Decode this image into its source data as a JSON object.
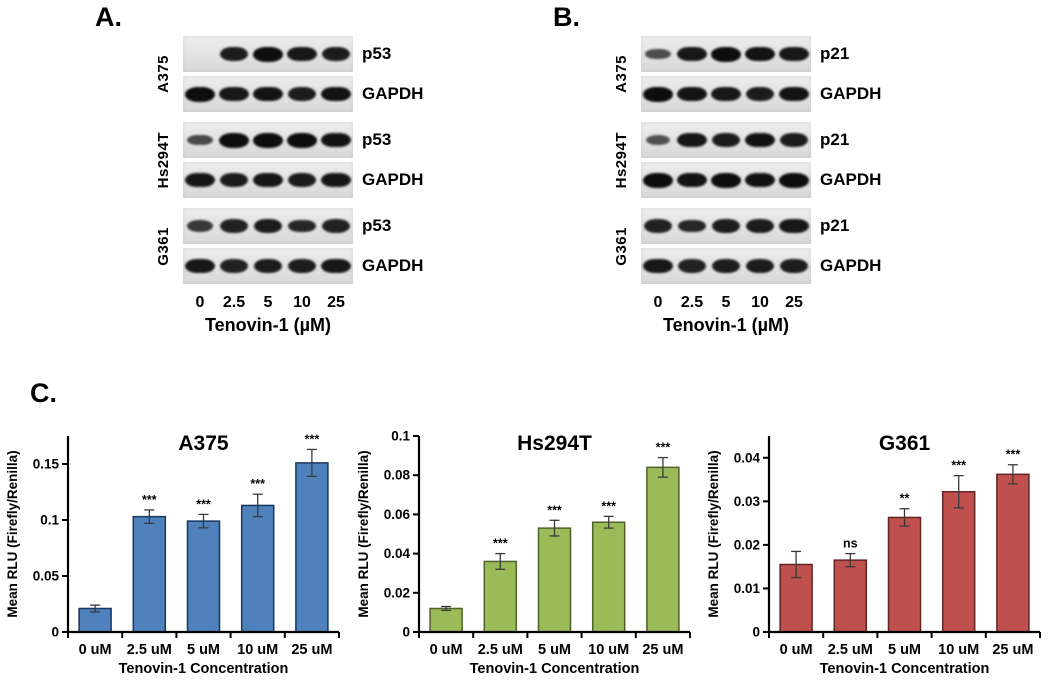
{
  "figure": {
    "panel_c_label": "C."
  },
  "blot_panels": [
    {
      "panel_label": "A.",
      "cell_lines": [
        {
          "name": "A375",
          "rows": [
            {
              "protein": "p53",
              "bands": [
                0,
                0.85,
                1,
                0.9,
                0.85
              ]
            },
            {
              "protein": "GAPDH",
              "bands": [
                1,
                0.9,
                0.95,
                0.85,
                0.95
              ]
            }
          ]
        },
        {
          "name": "Hs294T",
          "rows": [
            {
              "protein": "p53",
              "bands": [
                0.45,
                1,
                1,
                1,
                0.95
              ]
            },
            {
              "protein": "GAPDH",
              "bands": [
                0.9,
                0.85,
                0.9,
                0.85,
                0.9
              ]
            }
          ]
        },
        {
          "name": "G361",
          "rows": [
            {
              "protein": "p53",
              "bands": [
                0.6,
                0.8,
                0.85,
                0.75,
                0.8
              ]
            },
            {
              "protein": "GAPDH",
              "bands": [
                0.9,
                0.8,
                0.85,
                0.85,
                0.9
              ]
            }
          ]
        }
      ],
      "dose_labels": [
        "0",
        "2.5",
        "5",
        "10",
        "25"
      ],
      "dose_axis_label": "Tenovin-1 (µM)"
    },
    {
      "panel_label": "B.",
      "cell_lines": [
        {
          "name": "A375",
          "rows": [
            {
              "protein": "p21",
              "bands": [
                0.4,
                0.9,
                1,
                0.95,
                0.9
              ]
            },
            {
              "protein": "GAPDH",
              "bands": [
                1,
                0.95,
                0.9,
                0.85,
                0.95
              ]
            }
          ]
        },
        {
          "name": "Hs294T",
          "rows": [
            {
              "protein": "p21",
              "bands": [
                0.35,
                0.9,
                0.85,
                0.95,
                0.85
              ]
            },
            {
              "protein": "GAPDH",
              "bands": [
                1,
                0.95,
                1,
                0.95,
                1
              ]
            }
          ]
        },
        {
          "name": "G361",
          "rows": [
            {
              "protein": "p21",
              "bands": [
                0.8,
                0.75,
                0.85,
                0.85,
                0.9
              ]
            },
            {
              "protein": "GAPDH",
              "bands": [
                0.9,
                0.8,
                0.85,
                0.85,
                0.85
              ]
            }
          ]
        }
      ],
      "dose_labels": [
        "0",
        "2.5",
        "5",
        "10",
        "25"
      ],
      "dose_axis_label": "Tenovin-1 (µM)"
    }
  ],
  "chart_data": [
    {
      "type": "bar",
      "title": "A375",
      "ylabel": "Mean RLU (Firefly/Renilla)",
      "xlabel": "Tenovin-1 Concentration",
      "categories": [
        "0 uM",
        "2.5 uM",
        "5 uM",
        "10 uM",
        "25 uM"
      ],
      "values": [
        0.021,
        0.103,
        0.099,
        0.113,
        0.151
      ],
      "errors": [
        0.003,
        0.006,
        0.006,
        0.01,
        0.012
      ],
      "significance": [
        "",
        "***",
        "***",
        "***",
        "***"
      ],
      "bar_color": "#4f81bd",
      "bar_border_color": "#17375e",
      "ylim": [
        0,
        0.175
      ],
      "yticks": [
        0,
        0.05,
        0.1,
        0.15
      ],
      "ytick_labels": [
        "0",
        "0.05",
        "0.1",
        "0.15"
      ],
      "grid": false,
      "legend": null
    },
    {
      "type": "bar",
      "title": "Hs294T",
      "ylabel": "Mean RLU (Firefly/Renilla)",
      "xlabel": "Tenovin-1 Concentration",
      "categories": [
        "0 uM",
        "2.5 uM",
        "5 uM",
        "10 uM",
        "25 uM"
      ],
      "values": [
        0.012,
        0.036,
        0.053,
        0.056,
        0.084
      ],
      "errors": [
        0.001,
        0.004,
        0.004,
        0.003,
        0.005
      ],
      "significance": [
        "",
        "***",
        "***",
        "***",
        "***"
      ],
      "bar_color": "#9bbb59",
      "bar_border_color": "#4f6228",
      "ylim": [
        0,
        0.1
      ],
      "yticks": [
        0,
        0.02,
        0.04,
        0.06,
        0.08,
        0.1
      ],
      "ytick_labels": [
        "0",
        "0.02",
        "0.04",
        "0.06",
        "0.08",
        "0.1"
      ],
      "grid": false,
      "legend": null
    },
    {
      "type": "bar",
      "title": "G361",
      "ylabel": "Mean RLU (Firefly/Renilla)",
      "xlabel": "Tenovin-1 Concentration",
      "categories": [
        "0 uM",
        "2.5 uM",
        "5 uM",
        "10 uM",
        "25 uM"
      ],
      "values": [
        0.0155,
        0.0165,
        0.0263,
        0.0322,
        0.0362
      ],
      "errors": [
        0.003,
        0.0015,
        0.002,
        0.0037,
        0.0022
      ],
      "significance": [
        "",
        "ns",
        "**",
        "***",
        "***"
      ],
      "bar_color": "#c0504d",
      "bar_border_color": "#632423",
      "ylim": [
        0,
        0.045
      ],
      "yticks": [
        0,
        0.01,
        0.02,
        0.03,
        0.04
      ],
      "ytick_labels": [
        "0",
        "0.01",
        "0.02",
        "0.03",
        "0.04"
      ],
      "grid": false,
      "legend": null
    }
  ]
}
